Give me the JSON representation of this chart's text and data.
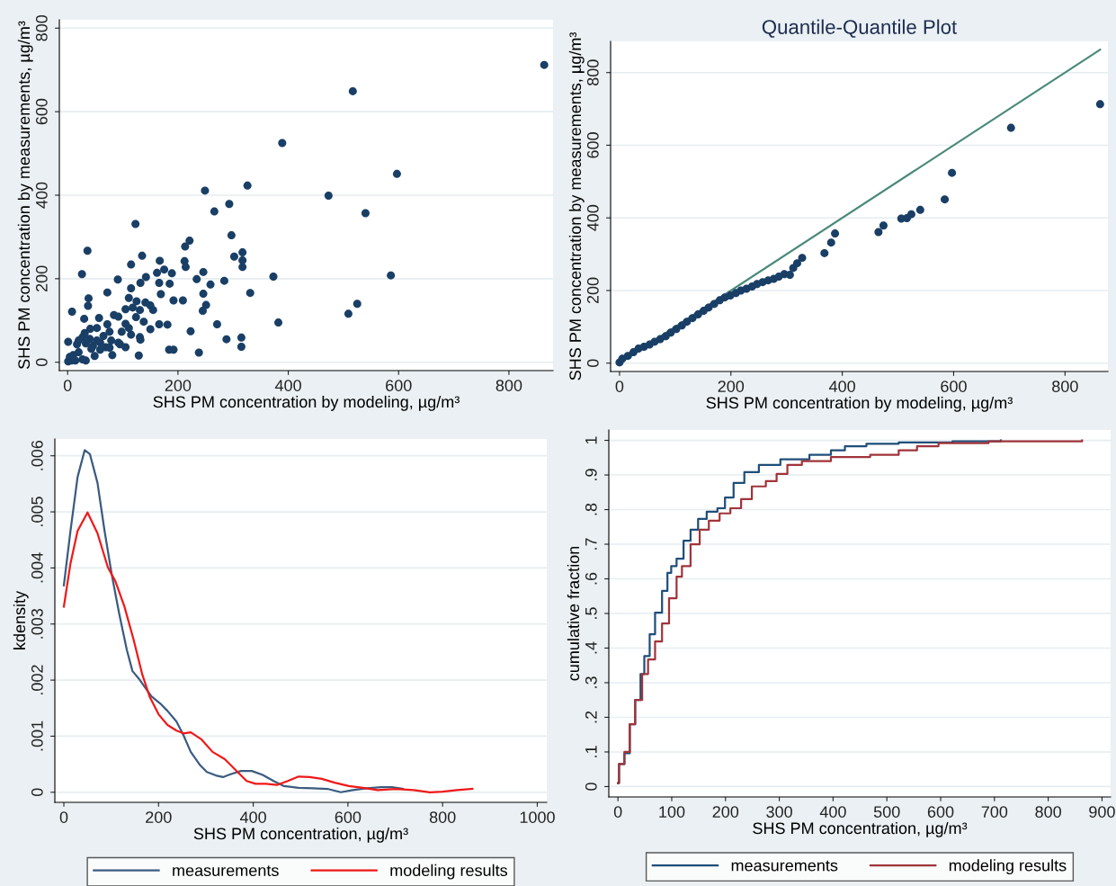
{
  "chart_data": [
    {
      "type": "scatter",
      "xlabel": "SHS PM concentration by modeling, µg/m³",
      "ylabel": "SHS PM concentration by measurements, µg/m³",
      "xlim": [
        -15,
        880
      ],
      "ylim": [
        -20,
        820
      ],
      "xticks": [
        0,
        200,
        400,
        600,
        800
      ],
      "yticks": [
        0,
        200,
        400,
        600,
        800
      ],
      "grid": "y",
      "marker": "circle",
      "legend": false,
      "series": [
        {
          "type": "scatter",
          "color": "#1a3f66",
          "x": [
            864,
            517,
            389,
            597,
            473,
            540,
            326,
            249,
            293,
            266,
            123,
            297,
            221,
            213,
            302,
            317,
            317,
            317,
            214,
            212,
            36,
            135,
            167,
            175,
            189,
            162,
            115,
            26,
            373,
            586,
            246,
            234,
            91,
            284,
            259,
            166,
            185,
            142,
            132,
            115,
            72,
            169,
            246,
            331,
            192,
            209,
            38,
            111,
            125,
            251,
            525,
            141,
            150,
            37,
            118,
            131,
            155,
            245,
            105,
            509,
            30,
            57,
            138,
            382,
            105,
            166,
            181,
            271,
            84,
            92,
            8,
            150,
            223,
            76,
            41,
            31,
            65,
            288,
            315,
            315,
            115,
            131,
            132,
            53,
            92,
            33,
            17,
            1,
            105,
            69,
            184,
            192,
            238,
            129,
            81,
            49,
            27,
            1,
            4,
            20,
            43,
            59,
            76,
            95,
            59,
            79,
            40,
            27,
            20,
            7,
            14,
            33,
            10,
            46,
            98,
            111,
            72,
            53,
            124
          ],
          "values": [
            712,
            649,
            525,
            451,
            399,
            357,
            423,
            411,
            379,
            361,
            331,
            304,
            291,
            277,
            253,
            263,
            244,
            228,
            228,
            242,
            267,
            255,
            243,
            222,
            213,
            214,
            234,
            211,
            205,
            208,
            216,
            199,
            198,
            195,
            186,
            190,
            188,
            204,
            190,
            177,
            167,
            163,
            164,
            166,
            148,
            148,
            153,
            154,
            146,
            137,
            140,
            143,
            136,
            135,
            131,
            125,
            125,
            123,
            127,
            116,
            104,
            106,
            97,
            95,
            92,
            91,
            90,
            91,
            113,
            109,
            121,
            79,
            74,
            73,
            80,
            70,
            63,
            55,
            59,
            37,
            66,
            60,
            54,
            52,
            47,
            45,
            43,
            49,
            36,
            36,
            30,
            30,
            23,
            16,
            17,
            15,
            7,
            2,
            13,
            24,
            32,
            30,
            35,
            43,
            47,
            52,
            56,
            60,
            52,
            4,
            4,
            4,
            17,
            39,
            73,
            82,
            91,
            82,
            108
          ]
        }
      ]
    },
    {
      "type": "scatter",
      "title": "Quantile-Quantile Plot",
      "xlabel": "SHS PM concentration by modeling, µg/m³",
      "ylabel": "SHS PM concentration by measurements, µg/m³",
      "xlim": [
        -16,
        877
      ],
      "ylim": [
        -23,
        886
      ],
      "xticks": [
        0,
        200,
        400,
        600,
        800
      ],
      "yticks": [
        0,
        200,
        400,
        600,
        800
      ],
      "grid": "y",
      "legend": false,
      "series": [
        {
          "type": "line",
          "marker": "none",
          "color": "#4a8a7a",
          "x": [
            0,
            863
          ],
          "values": [
            0,
            863
          ]
        },
        {
          "type": "scatter",
          "marker": "circle",
          "color": "#1a3f66",
          "x": [
            0,
            5,
            15,
            25,
            34,
            44,
            54,
            63,
            73,
            83,
            92,
            102,
            112,
            121,
            131,
            141,
            151,
            160,
            170,
            180,
            189,
            199,
            209,
            218,
            228,
            238,
            247,
            257,
            267,
            277,
            286,
            296,
            306,
            312,
            319,
            328,
            368,
            380,
            387,
            465,
            474,
            506,
            516,
            524,
            540,
            584,
            597,
            703,
            863
          ],
          "values": [
            2,
            12,
            20,
            30,
            40,
            45,
            51,
            59,
            66,
            74,
            84,
            94,
            104,
            114,
            124,
            134,
            144,
            153,
            163,
            173,
            181,
            186,
            193,
            200,
            205,
            211,
            218,
            223,
            228,
            232,
            238,
            245,
            243,
            262,
            275,
            290,
            303,
            332,
            357,
            361,
            379,
            398,
            399,
            410,
            422,
            451,
            524,
            648,
            713
          ]
        }
      ]
    },
    {
      "type": "line",
      "xlabel": "SHS PM concentration, µg/m³",
      "ylabel": "kdensity",
      "xlim": [
        -19,
        1020
      ],
      "ylim": [
        -0.00018,
        0.0063
      ],
      "xticks": [
        0,
        200,
        400,
        600,
        800,
        1000
      ],
      "yticks": [
        {
          "value": 0,
          "label": "0"
        },
        {
          "value": 0.001,
          "label": ".001"
        },
        {
          "value": 0.002,
          "label": ".002"
        },
        {
          "value": 0.003,
          "label": ".003"
        },
        {
          "value": 0.004,
          "label": ".004"
        },
        {
          "value": 0.005,
          "label": ".005"
        },
        {
          "value": 0.006,
          "label": ".006"
        }
      ],
      "grid": "y",
      "legend": "bottom",
      "marker": "none",
      "line_style": "solid",
      "series": [
        {
          "name": "measurements",
          "color": "#3b5b80",
          "x": [
            0,
            14,
            29,
            44,
            55,
            71,
            86,
            101,
            117,
            133,
            145,
            158,
            169,
            185,
            204,
            219,
            238,
            253,
            268,
            287,
            302,
            321,
            336,
            355,
            374,
            397,
            420,
            443,
            465,
            496,
            526,
            557,
            585,
            610,
            640,
            670,
            693,
            716
          ],
          "values": [
            0.00369,
            0.00466,
            0.00562,
            0.0061,
            0.00603,
            0.00552,
            0.00466,
            0.00389,
            0.00318,
            0.00254,
            0.00216,
            0.00203,
            0.0019,
            0.00171,
            0.00158,
            0.00145,
            0.00126,
            0.00101,
            0.00072,
            0.00049,
            0.00036,
            0.0003,
            0.00027,
            0.00033,
            0.00038,
            0.00038,
            0.00031,
            0.0002,
            0.00011,
            8e-05,
            7e-05,
            6e-05,
            0,
            4e-05,
            7e-05,
            9e-05,
            9e-05,
            6e-05
          ]
        },
        {
          "name": "modeling results",
          "color": "#f01818",
          "x": [
            0,
            14,
            29,
            50,
            71,
            93,
            109,
            128,
            147,
            166,
            181,
            200,
            219,
            238,
            253,
            268,
            291,
            314,
            340,
            367,
            386,
            405,
            427,
            450,
            473,
            496,
            519,
            545,
            572,
            602,
            632,
            663,
            701,
            739,
            773,
            800,
            830,
            863
          ],
          "values": [
            0.00331,
            0.00408,
            0.00466,
            0.00499,
            0.00462,
            0.00401,
            0.00376,
            0.00331,
            0.00273,
            0.00209,
            0.00171,
            0.00139,
            0.0012,
            0.0011,
            0.00105,
            0.00107,
            0.00094,
            0.00072,
            0.00059,
            0.00036,
            0.0002,
            0.00015,
            0.00015,
            0.00013,
            0.0002,
            0.00028,
            0.00027,
            0.00024,
            0.00017,
            0.00011,
            8e-05,
            4e-05,
            6e-05,
            4e-05,
            0,
            1e-05,
            4e-05,
            6e-05
          ]
        }
      ]
    },
    {
      "type": "step",
      "xlabel": "SHS PM concentration, µg/m³",
      "ylabel": "cumulative fraction",
      "xlim": [
        -17,
        916
      ],
      "ylim": [
        -0.03,
        1.03
      ],
      "xticks": [
        0,
        100,
        200,
        300,
        400,
        500,
        600,
        700,
        800,
        900
      ],
      "yticks": [
        {
          "value": 0,
          "label": "0"
        },
        {
          "value": 0.1,
          "label": ".1"
        },
        {
          "value": 0.2,
          "label": ".2"
        },
        {
          "value": 0.3,
          "label": ".3"
        },
        {
          "value": 0.4,
          "label": ".4"
        },
        {
          "value": 0.5,
          "label": ".5"
        },
        {
          "value": 0.6,
          "label": ".6"
        },
        {
          "value": 0.7,
          "label": ".7"
        },
        {
          "value": 0.8,
          "label": ".8"
        },
        {
          "value": 0.9,
          "label": ".9"
        },
        {
          "value": 1,
          "label": "1"
        }
      ],
      "grid": "y",
      "legend": "bottom",
      "marker": "none",
      "line_style": "solid",
      "series": [
        {
          "name": "measurements",
          "color": "#1f4e79",
          "x": [
            0,
            2,
            12,
            22,
            32,
            42,
            49,
            59,
            69,
            82,
            92,
            99,
            109,
            122,
            135,
            149,
            165,
            185,
            199,
            215,
            235,
            262,
            302,
            356,
            396,
            422,
            462,
            522,
            622,
            712
          ],
          "values": [
            0.01,
            0.065,
            0.096,
            0.18,
            0.25,
            0.325,
            0.377,
            0.44,
            0.502,
            0.565,
            0.617,
            0.637,
            0.658,
            0.71,
            0.742,
            0.773,
            0.794,
            0.804,
            0.835,
            0.877,
            0.908,
            0.929,
            0.945,
            0.958,
            0.971,
            0.983,
            0.99,
            0.994,
            0.997,
            1.0
          ]
        },
        {
          "name": "modeling results",
          "color": "#a0343a",
          "x": [
            0,
            2,
            12,
            22,
            32,
            45,
            56,
            69,
            82,
            95,
            109,
            119,
            135,
            152,
            169,
            189,
            209,
            229,
            249,
            275,
            295,
            315,
            342,
            396,
            469,
            522,
            556,
            596,
            689,
            863
          ],
          "values": [
            0.01,
            0.065,
            0.1,
            0.18,
            0.25,
            0.325,
            0.367,
            0.419,
            0.471,
            0.544,
            0.606,
            0.637,
            0.7,
            0.742,
            0.768,
            0.789,
            0.804,
            0.83,
            0.867,
            0.882,
            0.903,
            0.929,
            0.94,
            0.952,
            0.958,
            0.971,
            0.983,
            0.992,
            0.997,
            1.0
          ]
        }
      ]
    }
  ]
}
